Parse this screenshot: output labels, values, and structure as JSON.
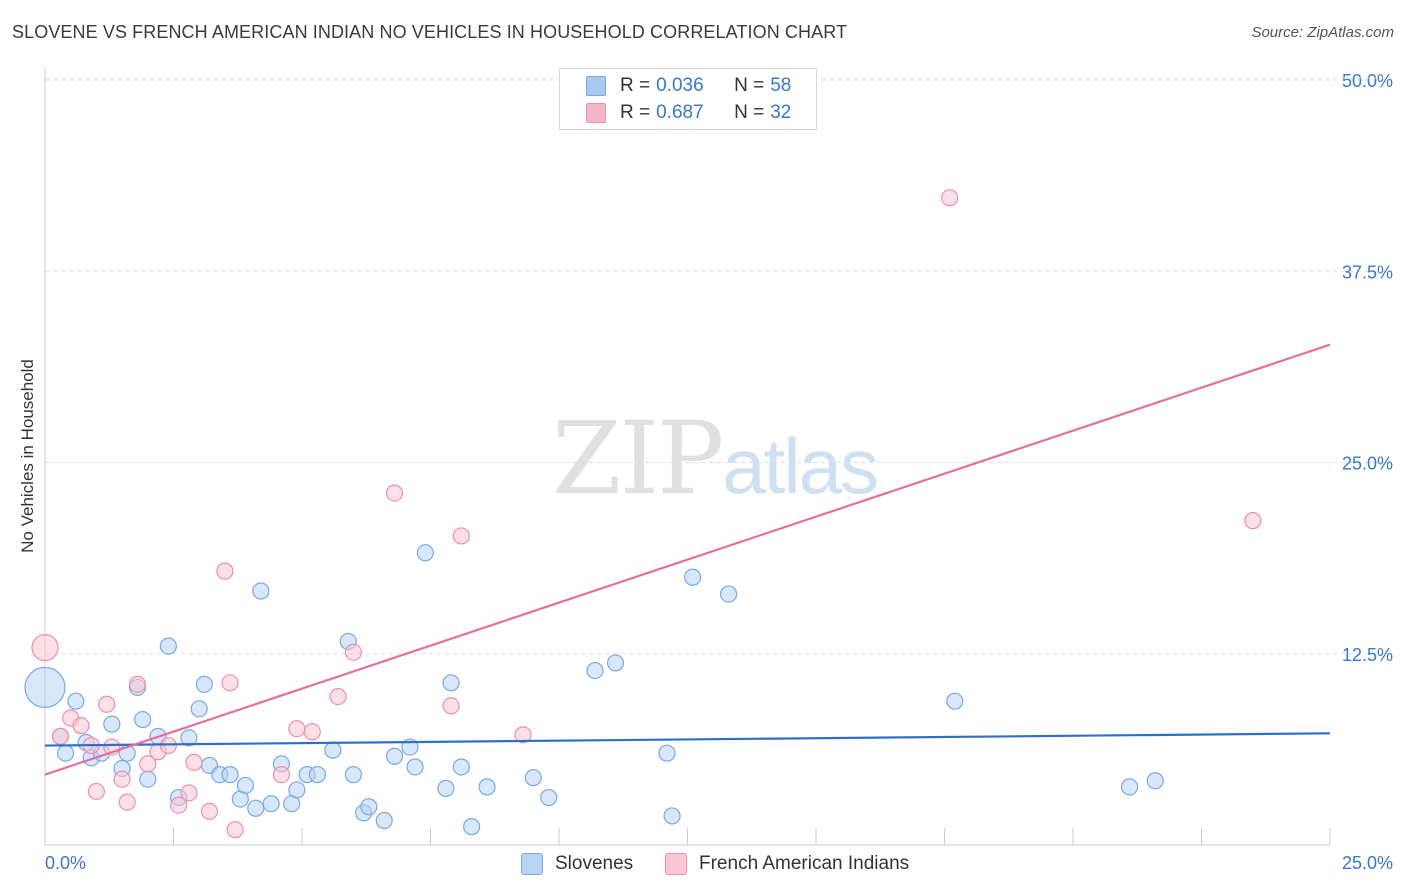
{
  "title": "SLOVENE VS FRENCH AMERICAN INDIAN NO VEHICLES IN HOUSEHOLD CORRELATION CHART",
  "source": "Source: ZipAtlas.com",
  "watermark": {
    "zip": "ZIP",
    "atlas": "atlas"
  },
  "legend": {
    "rows": [
      {
        "r_label": "R =",
        "r_value": "0.036",
        "n_label": "N =",
        "n_value": "58",
        "color": "#a8c8f0"
      },
      {
        "r_label": "R =",
        "r_value": "0.687",
        "n_label": "N =",
        "n_value": "32",
        "color": "#f7b6c8"
      }
    ]
  },
  "bottom_legend": [
    {
      "label": "Slovenes",
      "color": "#b8d4f4"
    },
    {
      "label": "French American Indians",
      "color": "#f9c6d4"
    }
  ],
  "chart_data": {
    "type": "scatter",
    "title": "SLOVENE VS FRENCH AMERICAN INDIAN NO VEHICLES IN HOUSEHOLD CORRELATION CHART",
    "xlabel": "",
    "ylabel": "No Vehicles in Household",
    "xlim": [
      0,
      25
    ],
    "ylim": [
      0,
      50
    ],
    "x_tick_labels": [
      "0.0%",
      "25.0%"
    ],
    "y_ticks": [
      12.5,
      25.0,
      37.5,
      50.0
    ],
    "y_tick_labels": [
      "12.5%",
      "25.0%",
      "37.5%",
      "50.0%"
    ],
    "grid": true,
    "colors": {
      "blue_fill": "#b8d4f4",
      "blue_stroke": "#7aaae0",
      "blue_line": "#2e6fce",
      "pink_fill": "#f9c6d4",
      "pink_stroke": "#ee8fae",
      "pink_line": "#e36f9a",
      "axis_text": "#3a78c9",
      "grid": "#dddddd"
    },
    "series": [
      {
        "name": "Slovenes",
        "trend": {
          "x": [
            0,
            25
          ],
          "y": [
            6.5,
            7.3
          ]
        },
        "points": [
          {
            "x": 0.0,
            "y": 10.3,
            "size": "large"
          },
          {
            "x": 0.3,
            "y": 7.1
          },
          {
            "x": 0.4,
            "y": 6.0
          },
          {
            "x": 0.6,
            "y": 9.4
          },
          {
            "x": 0.8,
            "y": 6.7
          },
          {
            "x": 0.9,
            "y": 5.7
          },
          {
            "x": 1.1,
            "y": 6.0
          },
          {
            "x": 1.3,
            "y": 7.9
          },
          {
            "x": 1.5,
            "y": 5.0
          },
          {
            "x": 1.6,
            "y": 6.0
          },
          {
            "x": 1.8,
            "y": 10.3
          },
          {
            "x": 1.9,
            "y": 8.2
          },
          {
            "x": 2.0,
            "y": 4.3
          },
          {
            "x": 2.2,
            "y": 7.1
          },
          {
            "x": 2.4,
            "y": 13.0
          },
          {
            "x": 2.6,
            "y": 3.1
          },
          {
            "x": 2.8,
            "y": 7.0
          },
          {
            "x": 3.0,
            "y": 8.9
          },
          {
            "x": 3.1,
            "y": 10.5
          },
          {
            "x": 3.2,
            "y": 5.2
          },
          {
            "x": 3.4,
            "y": 4.6
          },
          {
            "x": 3.6,
            "y": 4.6
          },
          {
            "x": 3.8,
            "y": 3.0
          },
          {
            "x": 3.9,
            "y": 3.9
          },
          {
            "x": 4.1,
            "y": 2.4
          },
          {
            "x": 4.2,
            "y": 16.6
          },
          {
            "x": 4.4,
            "y": 2.7
          },
          {
            "x": 4.6,
            "y": 5.3
          },
          {
            "x": 4.8,
            "y": 2.7
          },
          {
            "x": 4.9,
            "y": 3.6
          },
          {
            "x": 5.1,
            "y": 4.6
          },
          {
            "x": 5.3,
            "y": 4.6
          },
          {
            "x": 5.6,
            "y": 6.2
          },
          {
            "x": 5.9,
            "y": 13.3
          },
          {
            "x": 6.0,
            "y": 4.6
          },
          {
            "x": 6.2,
            "y": 2.1
          },
          {
            "x": 6.3,
            "y": 2.5
          },
          {
            "x": 6.6,
            "y": 1.6
          },
          {
            "x": 6.8,
            "y": 5.8
          },
          {
            "x": 7.1,
            "y": 6.4
          },
          {
            "x": 7.2,
            "y": 5.1
          },
          {
            "x": 7.4,
            "y": 19.1
          },
          {
            "x": 7.8,
            "y": 3.7
          },
          {
            "x": 7.9,
            "y": 10.6
          },
          {
            "x": 8.1,
            "y": 5.1
          },
          {
            "x": 8.3,
            "y": 1.2
          },
          {
            "x": 8.6,
            "y": 3.8
          },
          {
            "x": 9.5,
            "y": 4.4
          },
          {
            "x": 9.8,
            "y": 3.1
          },
          {
            "x": 10.7,
            "y": 11.4
          },
          {
            "x": 11.1,
            "y": 11.9
          },
          {
            "x": 12.1,
            "y": 6.0
          },
          {
            "x": 12.2,
            "y": 1.9
          },
          {
            "x": 12.6,
            "y": 17.5
          },
          {
            "x": 13.3,
            "y": 16.4
          },
          {
            "x": 17.7,
            "y": 9.4
          },
          {
            "x": 21.1,
            "y": 3.8
          },
          {
            "x": 21.6,
            "y": 4.2
          }
        ]
      },
      {
        "name": "French American Indians",
        "trend": {
          "x": [
            0,
            25
          ],
          "y": [
            4.6,
            32.7
          ]
        },
        "points": [
          {
            "x": 0.0,
            "y": 12.9,
            "size": "medium"
          },
          {
            "x": 0.3,
            "y": 7.1
          },
          {
            "x": 0.5,
            "y": 8.3
          },
          {
            "x": 0.7,
            "y": 7.8
          },
          {
            "x": 0.9,
            "y": 6.5
          },
          {
            "x": 1.0,
            "y": 3.5
          },
          {
            "x": 1.2,
            "y": 9.2
          },
          {
            "x": 1.3,
            "y": 6.4
          },
          {
            "x": 1.5,
            "y": 4.3
          },
          {
            "x": 1.6,
            "y": 2.8
          },
          {
            "x": 1.8,
            "y": 10.5
          },
          {
            "x": 2.0,
            "y": 5.3
          },
          {
            "x": 2.2,
            "y": 6.1
          },
          {
            "x": 2.4,
            "y": 6.5
          },
          {
            "x": 2.6,
            "y": 2.6
          },
          {
            "x": 2.8,
            "y": 3.4
          },
          {
            "x": 2.9,
            "y": 5.4
          },
          {
            "x": 3.2,
            "y": 2.2
          },
          {
            "x": 3.5,
            "y": 17.9
          },
          {
            "x": 3.6,
            "y": 10.6
          },
          {
            "x": 3.7,
            "y": 1.0
          },
          {
            "x": 4.6,
            "y": 4.6
          },
          {
            "x": 4.9,
            "y": 7.6
          },
          {
            "x": 5.2,
            "y": 7.4
          },
          {
            "x": 5.7,
            "y": 9.7
          },
          {
            "x": 6.0,
            "y": 12.6
          },
          {
            "x": 6.8,
            "y": 23.0
          },
          {
            "x": 7.9,
            "y": 9.1
          },
          {
            "x": 8.1,
            "y": 20.2
          },
          {
            "x": 9.3,
            "y": 7.2
          },
          {
            "x": 17.6,
            "y": 42.3
          },
          {
            "x": 23.5,
            "y": 21.2
          }
        ]
      }
    ]
  }
}
